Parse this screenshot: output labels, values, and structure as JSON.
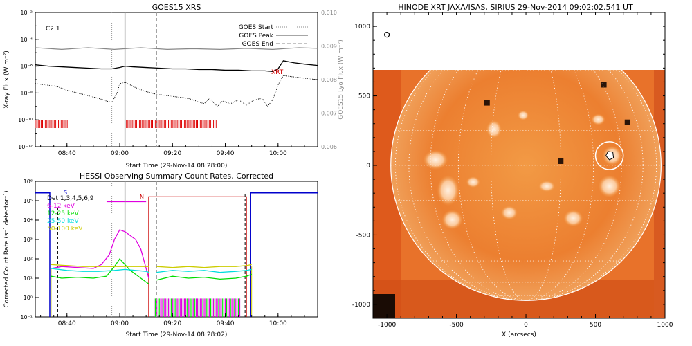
{
  "chart_data": [
    {
      "type": "line",
      "title": "GOES15 XRS",
      "xlabel": "Start Time (29-Nov-14 08:28:00)",
      "ylabel": "X-ray Flux (W m⁻²)",
      "y2label": "GOES15 Lyα Flux (W m⁻²)",
      "flare_class": "C2.1",
      "x_ticks": [
        "08:40",
        "09:00",
        "09:20",
        "09:40",
        "10:00"
      ],
      "x_tick_minutes": [
        40,
        60,
        80,
        100,
        120
      ],
      "xlim_minutes": [
        28,
        135
      ],
      "ylim_log10": [
        -12,
        -2
      ],
      "y_ticks": [
        "10⁻¹²",
        "10⁻¹⁰",
        "10⁻⁸",
        "10⁻⁶",
        "10⁻⁴",
        "10⁻²"
      ],
      "y2lim": [
        0.006,
        0.01
      ],
      "y2_ticks": [
        "0.006",
        "0.007",
        "0.008",
        "0.009",
        "0.010"
      ],
      "legend": [
        "GOES Start",
        "GOES Peak",
        "GOES End"
      ],
      "markers": [
        {
          "name": "GOES Start",
          "minute": 57,
          "style": "dotted"
        },
        {
          "name": "GOES Peak",
          "minute": 62,
          "style": "solid"
        },
        {
          "name": "GOES End",
          "minute": 74,
          "style": "dashed"
        }
      ],
      "annotation_xrt": "XRT",
      "xrt_intervals_minutes": [
        [
          28,
          40.5
        ],
        [
          62,
          97
        ]
      ],
      "series": [
        {
          "name": "GOES long",
          "x": [
            28,
            33,
            38,
            43,
            48,
            53,
            57,
            60,
            62,
            65,
            70,
            75,
            80,
            85,
            90,
            95,
            100,
            105,
            110,
            115,
            118,
            120,
            122,
            126,
            130,
            135
          ],
          "log10": [
            -5.9,
            -6.0,
            -6.05,
            -6.1,
            -6.15,
            -6.2,
            -6.2,
            -6.1,
            -6.0,
            -6.05,
            -6.1,
            -6.15,
            -6.2,
            -6.2,
            -6.25,
            -6.25,
            -6.3,
            -6.3,
            -6.35,
            -6.35,
            -6.4,
            -6.2,
            -5.6,
            -5.75,
            -5.85,
            -5.95
          ]
        },
        {
          "name": "GOES short",
          "x": [
            28,
            32,
            36,
            40,
            44,
            48,
            52,
            55,
            57,
            59,
            60,
            62,
            64,
            66,
            70,
            74,
            78,
            82,
            86,
            89,
            92,
            94,
            97,
            99,
            102,
            105,
            108,
            111,
            114,
            116,
            118,
            119,
            120,
            122,
            126,
            130,
            135
          ],
          "log10": [
            -7.3,
            -7.4,
            -7.5,
            -7.8,
            -8.0,
            -8.2,
            -8.4,
            -8.6,
            -8.7,
            -8.0,
            -7.3,
            -7.2,
            -7.4,
            -7.6,
            -7.9,
            -8.1,
            -8.2,
            -8.3,
            -8.4,
            -8.6,
            -8.8,
            -8.4,
            -9.0,
            -8.6,
            -8.8,
            -8.5,
            -8.9,
            -8.5,
            -8.4,
            -9.0,
            -8.5,
            -8.0,
            -7.4,
            -6.7,
            -6.8,
            -6.9,
            -7.0
          ]
        },
        {
          "name": "GOES Lyα",
          "x": [
            28,
            38,
            48,
            58,
            68,
            78,
            88,
            98,
            108,
            118,
            128,
            135
          ],
          "y2": [
            0.00895,
            0.0089,
            0.00895,
            0.0089,
            0.00895,
            0.0089,
            0.00892,
            0.0089,
            0.00893,
            0.0089,
            0.00895,
            0.00893
          ]
        }
      ]
    },
    {
      "type": "line",
      "title": "HESSI Observing Summary Count Rates, Corrected",
      "xlabel": "Start Time (29-Nov-14 08:28:02)",
      "ylabel": "Corrected Count Rate (s⁻¹ detector⁻¹)",
      "x_ticks": [
        "08:40",
        "09:00",
        "09:20",
        "09:40",
        "10:00"
      ],
      "x_tick_minutes": [
        40,
        60,
        80,
        100,
        120
      ],
      "xlim_minutes": [
        28,
        135
      ],
      "ylim_log10": [
        -1,
        6
      ],
      "y_ticks": [
        "10⁻¹",
        "10⁰",
        "10¹",
        "10²",
        "10³",
        "10⁴",
        "10⁵",
        "10⁶"
      ],
      "legend": [
        {
          "label": "Det 1,3,4,5,6,9",
          "color": "#000000"
        },
        {
          "label": "6-12 keV",
          "color": "#e000e0"
        },
        {
          "label": "12-25 keV",
          "color": "#00dd00"
        },
        {
          "label": "25-50 keV",
          "color": "#00dddd"
        },
        {
          "label": "50-100 keV",
          "color": "#cccc00"
        }
      ],
      "flag_labels": [
        "S",
        "N"
      ],
      "series": [
        {
          "name": "6-12 keV",
          "color": "#e000e0",
          "x": [
            34,
            38,
            44,
            50,
            53,
            56,
            58,
            60,
            62,
            64,
            66,
            68,
            70,
            71
          ],
          "log10": [
            1.5,
            1.6,
            1.55,
            1.5,
            1.7,
            2.2,
            3.0,
            3.5,
            3.4,
            3.2,
            3.0,
            2.5,
            1.5,
            1.0
          ]
        },
        {
          "name": "12-25 keV",
          "color": "#00dd00",
          "x": [
            34,
            38,
            44,
            50,
            55,
            58,
            60,
            62,
            64,
            66,
            68,
            70,
            71
          ],
          "log10": [
            1.1,
            1.0,
            1.05,
            1.0,
            1.1,
            1.6,
            2.0,
            1.7,
            1.4,
            1.2,
            1.0,
            0.8,
            0.7
          ]
        },
        {
          "name": "25-50 keV",
          "color": "#00dddd",
          "x": [
            34,
            40,
            46,
            52,
            58,
            62,
            66,
            70,
            71
          ],
          "log10": [
            1.5,
            1.4,
            1.35,
            1.35,
            1.4,
            1.45,
            1.4,
            1.35,
            1.3
          ]
        },
        {
          "name": "50-100 keV",
          "color": "#cccc00",
          "x": [
            34,
            40,
            46,
            52,
            58,
            64,
            70,
            71
          ],
          "log10": [
            1.7,
            1.65,
            1.6,
            1.6,
            1.6,
            1.6,
            1.6,
            1.6
          ]
        },
        {
          "name": "12-25 keV (late)",
          "color": "#00dd00",
          "x": [
            74,
            80,
            86,
            92,
            98,
            104,
            108,
            110
          ],
          "log10": [
            0.9,
            1.1,
            1.0,
            1.05,
            0.95,
            1.0,
            1.1,
            1.2
          ]
        },
        {
          "name": "25-50 keV (late)",
          "color": "#00dddd",
          "x": [
            74,
            80,
            86,
            92,
            98,
            104,
            108,
            110
          ],
          "log10": [
            1.3,
            1.4,
            1.35,
            1.4,
            1.3,
            1.35,
            1.4,
            1.45
          ]
        },
        {
          "name": "50-100 keV (late)",
          "color": "#cccc00",
          "x": [
            74,
            80,
            86,
            92,
            98,
            104,
            108,
            110
          ],
          "log10": [
            1.6,
            1.55,
            1.6,
            1.55,
            1.6,
            1.6,
            1.65,
            1.7
          ]
        }
      ]
    },
    {
      "type": "heatmap",
      "title": "HINODE XRT JAXA/ISAS, SIRIUS 29-Nov-2014 09:02:02.541 UT",
      "xlabel": "X (arcsecs)",
      "ylabel": "",
      "xlim": [
        -1100,
        1000
      ],
      "ylim": [
        -1100,
        1100
      ],
      "x_ticks": [
        "-1000",
        "-500",
        "0",
        "500",
        "1000"
      ],
      "x_tick_values": [
        -1000,
        -500,
        0,
        500,
        1000
      ],
      "y_ticks": [
        "-1000",
        "-500",
        "0",
        "500",
        "1000"
      ],
      "y_tick_values": [
        -1000,
        -500,
        0,
        500,
        1000
      ],
      "image_extent": {
        "x": [
          -1100,
          1000
        ],
        "y": [
          -1100,
          700
        ]
      },
      "solar_radius_arcsec": 972,
      "grid": true,
      "highlight_circle": {
        "x": 600,
        "y": 70,
        "r": 100
      }
    }
  ]
}
